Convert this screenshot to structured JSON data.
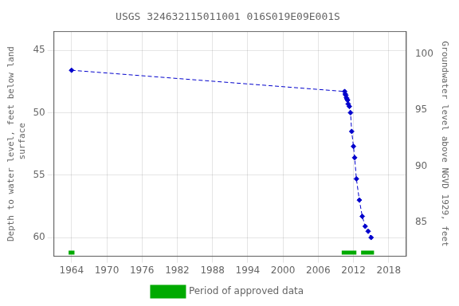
{
  "chart_data": {
    "type": "line",
    "title": "USGS 324632115011001 016S019E09E001S",
    "ylabel": "Depth to water level, feet below land\n surface",
    "y2label": "Groundwater level above NGVD 1929, feet",
    "xlim": [
      1961,
      2021
    ],
    "xticks": [
      1964,
      1970,
      1976,
      1982,
      1988,
      1994,
      2000,
      2006,
      2012,
      2018
    ],
    "ylim": [
      61.5,
      43.5
    ],
    "yticks": [
      45,
      50,
      55,
      60
    ],
    "y2lim": [
      82,
      102
    ],
    "y2ticks": [
      85,
      90,
      95,
      100
    ],
    "grid": true,
    "legend": "bottom",
    "series": [
      {
        "color": "#0000cc",
        "line_style": "dashed",
        "marker": "diamond",
        "x": [
          1964.0,
          2010.5,
          2010.6,
          2010.7,
          2010.8,
          2010.9,
          2011.0,
          2011.1,
          2011.3,
          2011.5,
          2011.7,
          2012.0,
          2012.2,
          2012.5,
          2013.0,
          2013.5,
          2014.0,
          2014.5,
          2015.0
        ],
        "values": [
          46.6,
          48.3,
          48.5,
          48.6,
          48.8,
          48.9,
          49.0,
          49.3,
          49.5,
          50.0,
          51.5,
          52.7,
          53.6,
          55.3,
          57.0,
          58.3,
          59.1,
          59.5,
          60.0
        ]
      },
      {
        "name": "Period of approved data",
        "type": "bar",
        "color": "#00aa00",
        "periods": [
          [
            1963.5,
            1964.5
          ],
          [
            2010.0,
            2012.5
          ],
          [
            2013.3,
            2015.5
          ]
        ],
        "y": 61.2
      }
    ]
  }
}
